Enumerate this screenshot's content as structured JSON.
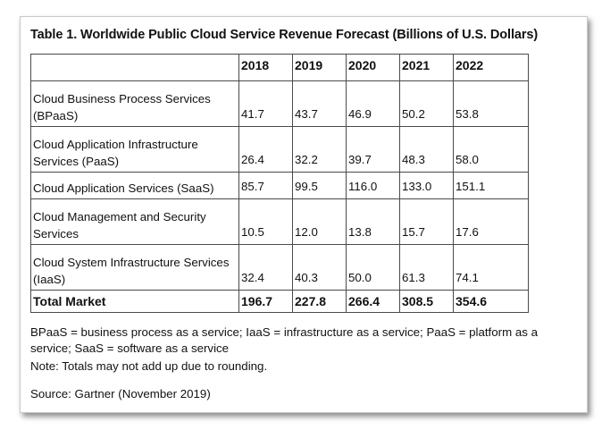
{
  "title": "Table 1. Worldwide Public Cloud Service Revenue Forecast (Billions of U.S. Dollars)",
  "table": {
    "corner": "",
    "years": [
      "2018",
      "2019",
      "2020",
      "2021",
      "2022"
    ],
    "rows": [
      {
        "category": "Cloud Business Process Services (BPaaS)",
        "values": [
          "41.7",
          "43.7",
          "46.9",
          "50.2",
          "53.8"
        ]
      },
      {
        "category": "Cloud Application Infrastructure Services (PaaS)",
        "values": [
          "26.4",
          "32.2",
          "39.7",
          "48.3",
          "58.0"
        ]
      },
      {
        "category": "Cloud Application Services (SaaS)",
        "values": [
          "85.7",
          "99.5",
          "116.0",
          "133.0",
          "151.1"
        ]
      },
      {
        "category": "Cloud Management and Security Services",
        "values": [
          "10.5",
          "12.0",
          "13.8",
          "15.7",
          "17.6"
        ]
      },
      {
        "category": "Cloud System Infrastructure Services (IaaS)",
        "values": [
          "32.4",
          "40.3",
          "50.0",
          "61.3",
          "74.1"
        ]
      }
    ],
    "total": {
      "category": "Total Market",
      "values": [
        "196.7",
        "227.8",
        "266.4",
        "308.5",
        "354.6"
      ]
    }
  },
  "footnotes": {
    "abbreviations": "BPaaS = business process as a service; IaaS = infrastructure as a service; PaaS = platform as a service; SaaS = software as a service",
    "note": "Note: Totals may not add up due to rounding.",
    "source": "Source: Gartner (November 2019)"
  },
  "chart_data": {
    "type": "table",
    "title": "Table 1. Worldwide Public Cloud Service Revenue Forecast (Billions of U.S. Dollars)",
    "columns": [
      "",
      "2018",
      "2019",
      "2020",
      "2021",
      "2022"
    ],
    "rows": [
      [
        "Cloud Business Process Services (BPaaS)",
        41.7,
        43.7,
        46.9,
        50.2,
        53.8
      ],
      [
        "Cloud Application Infrastructure Services (PaaS)",
        26.4,
        32.2,
        39.7,
        48.3,
        58.0
      ],
      [
        "Cloud Application Services (SaaS)",
        85.7,
        99.5,
        116.0,
        133.0,
        151.1
      ],
      [
        "Cloud Management and Security Services",
        10.5,
        12.0,
        13.8,
        15.7,
        17.6
      ],
      [
        "Cloud System Infrastructure Services (IaaS)",
        32.4,
        40.3,
        50.0,
        61.3,
        74.1
      ],
      [
        "Total Market",
        196.7,
        227.8,
        266.4,
        308.5,
        354.6
      ]
    ]
  }
}
